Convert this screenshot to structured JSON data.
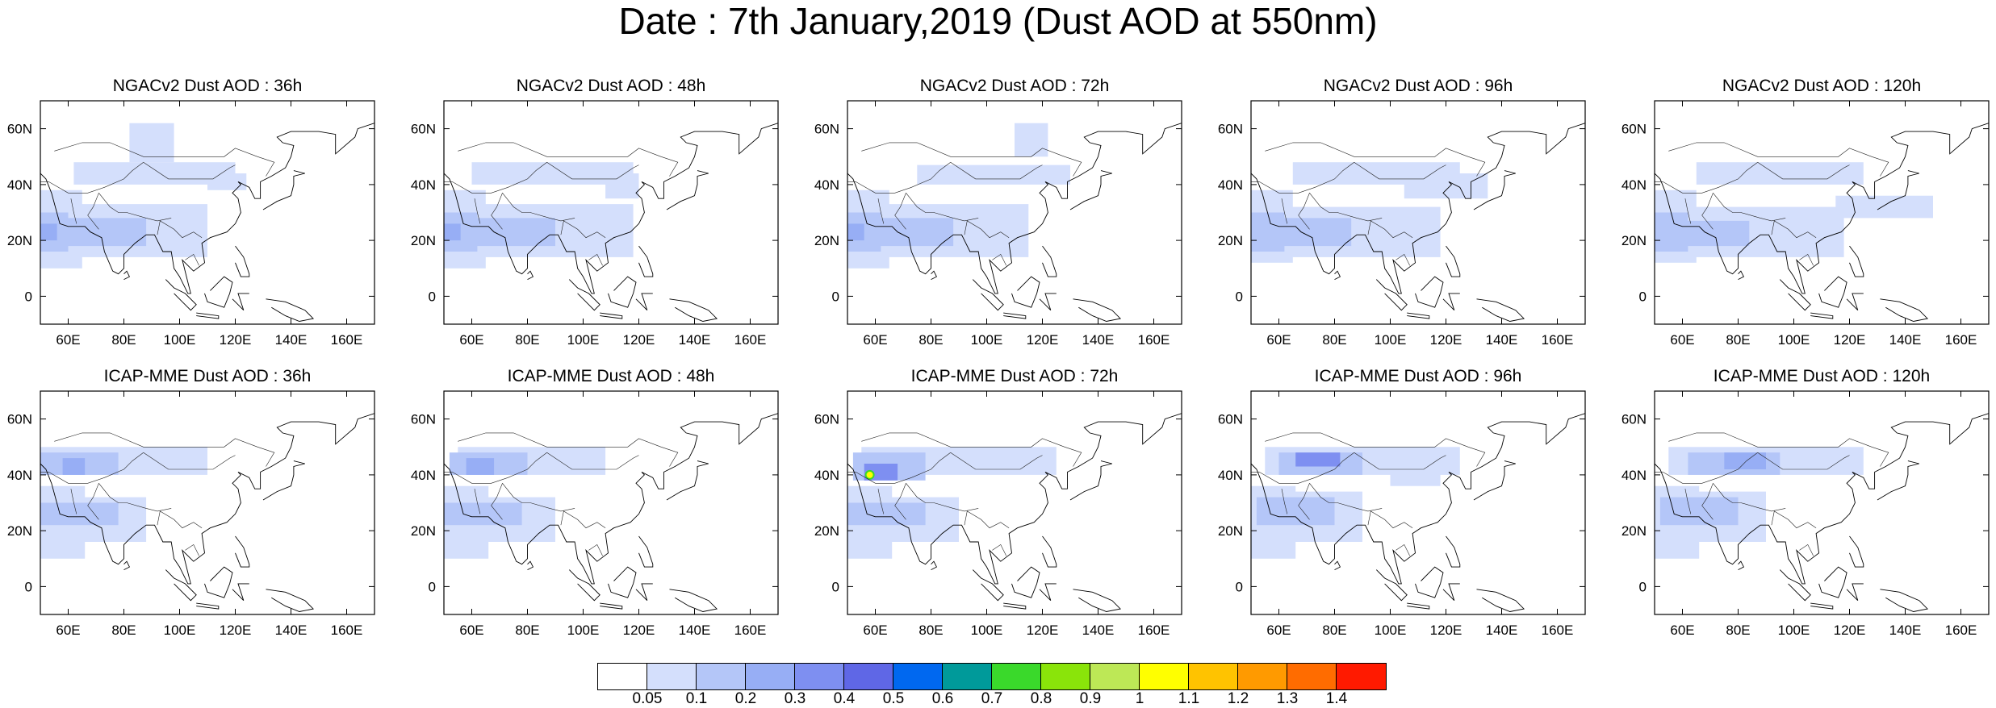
{
  "title": "Date : 7th January,2019 (Dust AOD at 550nm)",
  "map_extent": {
    "lon": [
      50,
      170
    ],
    "lat": [
      -10,
      70
    ]
  },
  "x_ticks": [
    "60E",
    "80E",
    "100E",
    "120E",
    "140E",
    "160E"
  ],
  "y_ticks": [
    "60N",
    "40N",
    "20N",
    "0"
  ],
  "panels": [
    {
      "title": "NGACv2 Dust AOD : 36h"
    },
    {
      "title": "NGACv2 Dust AOD : 48h"
    },
    {
      "title": "NGACv2 Dust AOD : 72h"
    },
    {
      "title": "NGACv2 Dust AOD : 96h"
    },
    {
      "title": "NGACv2 Dust AOD : 120h"
    },
    {
      "title": "ICAP-MME Dust AOD : 36h"
    },
    {
      "title": "ICAP-MME Dust AOD : 48h"
    },
    {
      "title": "ICAP-MME Dust AOD : 72h"
    },
    {
      "title": "ICAP-MME Dust AOD : 96h"
    },
    {
      "title": "ICAP-MME Dust AOD : 120h"
    }
  ],
  "colorbar": {
    "labels": [
      "0.05",
      "0.1",
      "0.2",
      "0.3",
      "0.4",
      "0.5",
      "0.6",
      "0.7",
      "0.8",
      "0.9",
      "1",
      "1.1",
      "1.2",
      "1.3",
      "1.4"
    ],
    "colors": [
      "#ffffff",
      "#d4dffc",
      "#b4c6f8",
      "#97aef5",
      "#7e8ff1",
      "#5f67e6",
      "#0068f0",
      "#009a9a",
      "#3ad92b",
      "#8ae40a",
      "#bde856",
      "#ffff00",
      "#ffc300",
      "#ff9a00",
      "#ff6c00",
      "#ff1a00"
    ],
    "shading_colors": {
      "light": "#d4dffc",
      "mid": "#b4c6f8",
      "strong": "#97aef5",
      "dark": "#7e8ff1"
    }
  }
}
